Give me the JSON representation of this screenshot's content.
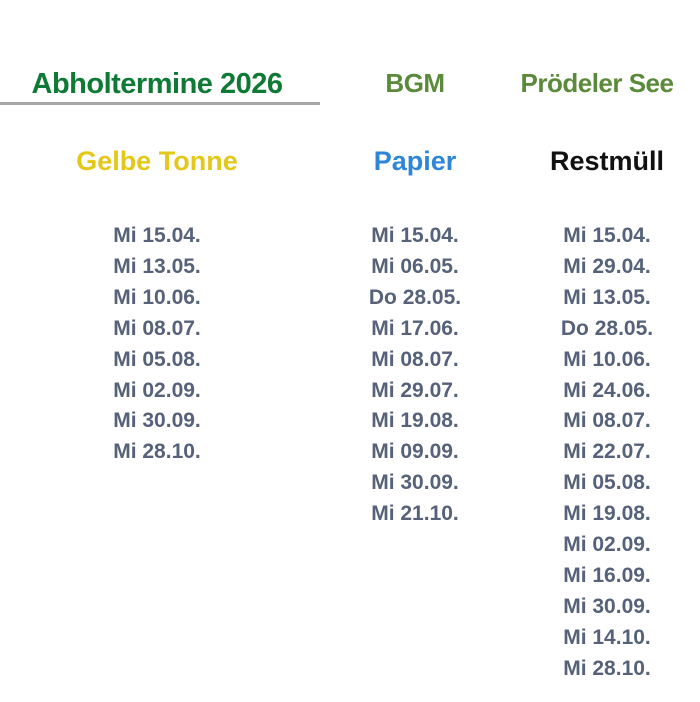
{
  "title": "Abholtermine 2026",
  "locations": [
    "BGM",
    "Prödeler See"
  ],
  "colors": {
    "title": "#0e7a36",
    "location": "#5a8a3a",
    "gelbe": "#e3c81a",
    "papier": "#2f86d6",
    "restmuell": "#111111",
    "dates": "#56627a"
  },
  "columns": [
    {
      "label": "Gelbe Tonne",
      "dates": [
        "Mi 15.04.",
        "Mi 13.05.",
        "Mi 10.06.",
        "Mi 08.07.",
        "Mi 05.08.",
        "Mi 02.09.",
        "Mi 30.09.",
        "Mi 28.10."
      ]
    },
    {
      "label": "Papier",
      "dates": [
        "Mi 15.04.",
        "Mi 06.05.",
        "Do 28.05.",
        "Mi 17.06.",
        "Mi 08.07.",
        "Mi 29.07.",
        "Mi 19.08.",
        "Mi 09.09.",
        "Mi 30.09.",
        "Mi 21.10."
      ]
    },
    {
      "label": "Restmüll",
      "dates": [
        "Mi 15.04.",
        "Mi 29.04.",
        "Mi 13.05.",
        "Do 28.05.",
        "Mi 10.06.",
        "Mi 24.06.",
        "Mi 08.07.",
        "Mi 22.07.",
        "Mi 05.08.",
        "Mi 19.08.",
        "Mi 02.09.",
        "Mi 16.09.",
        "Mi 30.09.",
        "Mi 14.10.",
        "Mi 28.10."
      ]
    }
  ]
}
